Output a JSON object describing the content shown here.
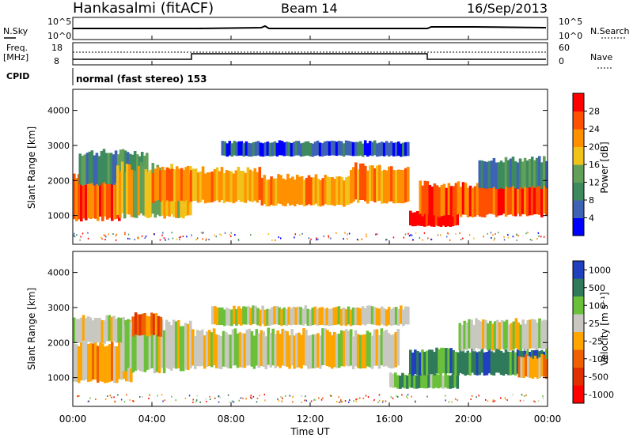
{
  "header": {
    "station": "Hankasalmi (fitACF)",
    "beam": "Beam 14",
    "date": "16/Sep/2013"
  },
  "noise_panel": {
    "left_label": "N.Sky",
    "right_label": "N.Search",
    "ticks_top": "10^5",
    "ticks_bottom": "10^0"
  },
  "freq_panel": {
    "left_label_1": "Freq.",
    "left_label_2": "[MHz]",
    "left_tick_top": "18",
    "left_tick_bottom": "8",
    "right_label": "Nave",
    "right_tick_top": "60",
    "right_tick_bottom": "0"
  },
  "cpid": {
    "label": "CPID",
    "mode": "normal (fast stereo) 153"
  },
  "x_axis": {
    "label": "Time UT",
    "ticks": [
      "00:00",
      "04:00",
      "08:00",
      "12:00",
      "16:00",
      "20:00",
      "00:00"
    ]
  },
  "y_axis": {
    "label": "Slant Range [km]",
    "ticks": [
      "1000",
      "2000",
      "3000",
      "4000"
    ]
  },
  "colors": {
    "power": [
      "#0000ff",
      "#3e63b4",
      "#3e8a5f",
      "#62a05a",
      "#f0c21a",
      "#ff9000",
      "#ff5000",
      "#ff0000"
    ],
    "velocity": [
      "#2040c0",
      "#2e7a5a",
      "#6bc03a",
      "#c8c8c0",
      "#ffa500",
      "#f06000",
      "#e03000",
      "#ff0000"
    ]
  },
  "chart_data": [
    {
      "type": "heatmap",
      "panel": "power",
      "colorbar_label": "Power [dB]",
      "colorbar_ticks": [
        "4",
        "8",
        "12",
        "16",
        "20",
        "24",
        "28"
      ],
      "x_range_hours": [
        0,
        24
      ],
      "y_range_km": [
        180,
        4600
      ],
      "echo_bands": [
        {
          "t0": 0.0,
          "t1": 2.4,
          "r0": 900,
          "r1": 2200,
          "level": 6
        },
        {
          "t0": 0.3,
          "t1": 3.8,
          "r0": 1900,
          "r1": 2800,
          "level": 2
        },
        {
          "t0": 2.2,
          "t1": 6.0,
          "r0": 1000,
          "r1": 2400,
          "level": 4
        },
        {
          "t0": 4.0,
          "t1": 9.5,
          "r0": 1400,
          "r1": 2300,
          "level": 5
        },
        {
          "t0": 9.5,
          "t1": 14.0,
          "r0": 1300,
          "r1": 2100,
          "level": 5
        },
        {
          "t0": 14.0,
          "t1": 17.0,
          "r0": 1400,
          "r1": 2400,
          "level": 5
        },
        {
          "t0": 17.0,
          "t1": 19.5,
          "r0": 700,
          "r1": 1100,
          "level": 7
        },
        {
          "t0": 17.5,
          "t1": 24.0,
          "r0": 1000,
          "r1": 1900,
          "level": 6
        },
        {
          "t0": 20.5,
          "t1": 24.0,
          "r0": 1800,
          "r1": 2600,
          "level": 2
        },
        {
          "t0": 7.5,
          "t1": 17.0,
          "r0": 2700,
          "r1": 3100,
          "level": 1
        }
      ]
    },
    {
      "type": "heatmap",
      "panel": "velocity",
      "colorbar_label": "Velocity [m s⁻¹]",
      "colorbar_ticks": [
        "1000",
        "500",
        "100",
        "25",
        "-25",
        "-100",
        "-500",
        "-1000"
      ],
      "x_range_hours": [
        0,
        24
      ],
      "y_range_km": [
        180,
        4600
      ],
      "echo_bands": [
        {
          "t0": 0.0,
          "t1": 3.0,
          "r0": 900,
          "r1": 2000,
          "level": 4
        },
        {
          "t0": 0.0,
          "t1": 4.5,
          "r0": 2000,
          "r1": 2700,
          "level": 3
        },
        {
          "t0": 2.5,
          "t1": 6.0,
          "r0": 1200,
          "r1": 2500,
          "level": 3
        },
        {
          "t0": 3.0,
          "t1": 4.5,
          "r0": 2200,
          "r1": 2800,
          "level": 5
        },
        {
          "t0": 6.0,
          "t1": 16.5,
          "r0": 1300,
          "r1": 2300,
          "level": 3
        },
        {
          "t0": 16.0,
          "t1": 19.5,
          "r0": 700,
          "r1": 1100,
          "level": 2
        },
        {
          "t0": 17.0,
          "t1": 24.0,
          "r0": 1100,
          "r1": 1800,
          "level": 1
        },
        {
          "t0": 19.5,
          "t1": 24.0,
          "r0": 1800,
          "r1": 2600,
          "level": 3
        },
        {
          "t0": 22.5,
          "t1": 24.0,
          "r0": 1000,
          "r1": 1600,
          "level": 4
        },
        {
          "t0": 7.0,
          "t1": 17.0,
          "r0": 2500,
          "r1": 3000,
          "level": 3
        }
      ]
    }
  ]
}
